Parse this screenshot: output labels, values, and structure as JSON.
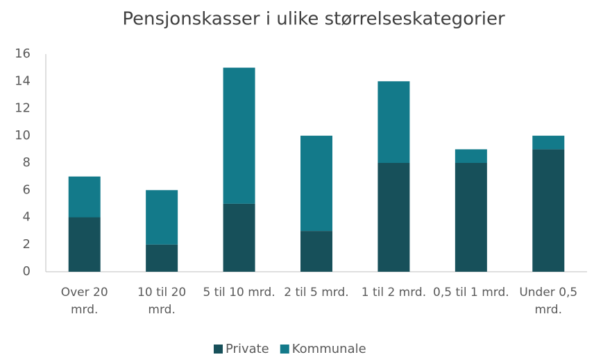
{
  "chart_data": {
    "type": "stacked_bar",
    "title": "Pensjonskasser i ulike størrelseskategorier",
    "categories": [
      "Over 20 mrd.",
      "10 til 20 mrd.",
      "5 til 10 mrd.",
      "2 til 5 mrd.",
      "1 til 2 mrd.",
      "0,5 til 1 mrd.",
      "Under 0,5 mrd."
    ],
    "series": [
      {
        "name": "Private",
        "color": "#17505a",
        "values": [
          4,
          2,
          5,
          3,
          8,
          8,
          9
        ]
      },
      {
        "name": "Kommunale",
        "color": "#137a8a",
        "values": [
          3,
          4,
          10,
          7,
          6,
          1,
          1
        ]
      }
    ],
    "ylim": [
      0,
      16
    ],
    "yticks": [
      0,
      2,
      4,
      6,
      8,
      10,
      12,
      14,
      16
    ],
    "grid": false,
    "legend": "bottom"
  }
}
